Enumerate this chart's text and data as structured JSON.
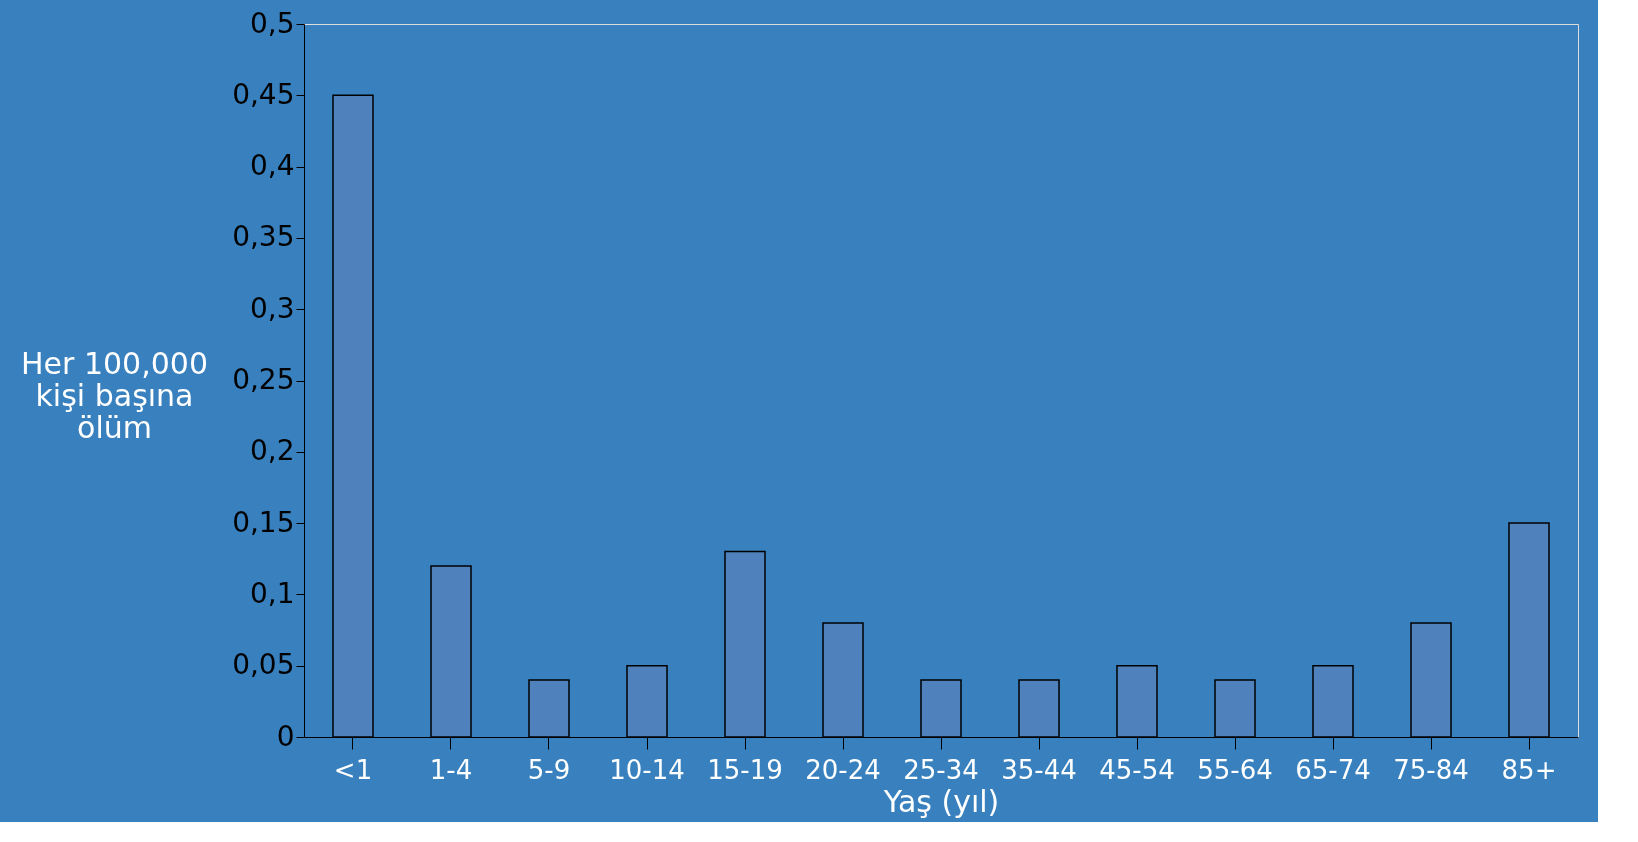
{
  "chart_data": {
    "type": "bar",
    "xlabel": "Yaş (yıl)",
    "ylabel": "Her 100,000 kişi başına ölüm",
    "categories": [
      "<1",
      "1-4",
      "5-9",
      "10-14",
      "15-19",
      "20-24",
      "25-34",
      "35-44",
      "45-54",
      "55-64",
      "65-74",
      "75-84",
      "85+"
    ],
    "values": [
      0.45,
      0.12,
      0.04,
      0.05,
      0.13,
      0.08,
      0.04,
      0.04,
      0.05,
      0.04,
      0.05,
      0.08,
      0.15
    ],
    "color": "#4f81bd",
    "ylim": [
      0,
      0.5
    ],
    "yticks": [
      {
        "value": 0,
        "label": "0"
      },
      {
        "value": 0.05,
        "label": "0,05"
      },
      {
        "value": 0.1,
        "label": "0,1"
      },
      {
        "value": 0.15,
        "label": "0,15"
      },
      {
        "value": 0.2,
        "label": "0,2"
      },
      {
        "value": 0.25,
        "label": "0,25"
      },
      {
        "value": 0.3,
        "label": "0,3"
      },
      {
        "value": 0.35,
        "label": "0,35"
      },
      {
        "value": 0.4,
        "label": "0,4"
      },
      {
        "value": 0.45,
        "label": "0,45"
      },
      {
        "value": 0.5,
        "label": "0,5"
      }
    ],
    "grid": false
  }
}
